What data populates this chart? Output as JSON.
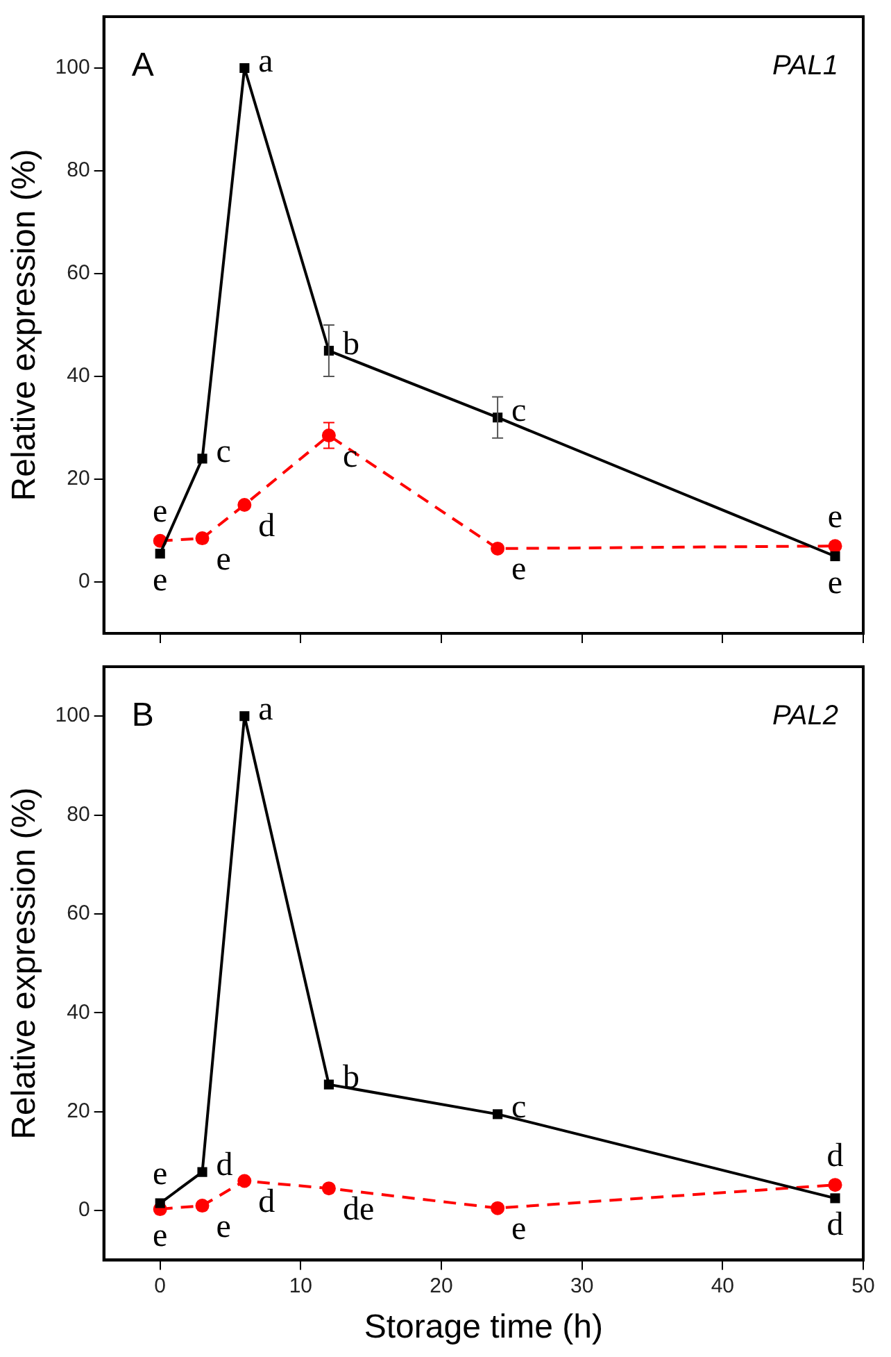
{
  "chart_data": [
    {
      "type": "line",
      "title": "A",
      "ylabel": "Relative expression (%)",
      "x": [
        0,
        3,
        6,
        12,
        24,
        48
      ],
      "xlim": [
        -4,
        50
      ],
      "xticks": [
        0,
        10,
        20,
        30,
        40,
        50
      ],
      "ylim": [
        -10,
        110
      ],
      "yticks": [
        0,
        20,
        40,
        60,
        80,
        100
      ],
      "tick_labels": "y",
      "grid": false,
      "series": [
        {
          "color": "#000000",
          "marker": "square",
          "line_style": "solid",
          "values": [
            5.5,
            24,
            100,
            45,
            32,
            5
          ],
          "errors": [
            null,
            null,
            null,
            5,
            4,
            null
          ]
        },
        {
          "color": "#ff0000",
          "marker": "circle",
          "line_style": "dashed",
          "values": [
            8,
            8.5,
            15,
            28.5,
            6.5,
            7
          ],
          "errors": [
            null,
            null,
            null,
            2.5,
            null,
            null
          ]
        }
      ],
      "annotations": [
        "PAL1",
        {
          "text": "e",
          "x": 0,
          "y": 8
        },
        {
          "text": "e",
          "x": 0,
          "y": 5.5
        },
        {
          "text": "c",
          "x": 3,
          "y": 24
        },
        {
          "text": "e",
          "x": 3,
          "y": 8.5
        },
        {
          "text": "a",
          "x": 6,
          "y": 100
        },
        {
          "text": "d",
          "x": 6,
          "y": 15
        },
        {
          "text": "b",
          "x": 12,
          "y": 45
        },
        {
          "text": "c",
          "x": 12,
          "y": 28.5
        },
        {
          "text": "c",
          "x": 24,
          "y": 32
        },
        {
          "text": "e",
          "x": 24,
          "y": 6.5
        },
        {
          "text": "e",
          "x": 48,
          "y": 7
        },
        {
          "text": "e",
          "x": 48,
          "y": 5
        }
      ]
    },
    {
      "type": "line",
      "title": "B",
      "xlabel": "Storage time (h)",
      "ylabel": "Relative expression (%)",
      "x": [
        0,
        3,
        6,
        12,
        24,
        48
      ],
      "xlim": [
        -4,
        50
      ],
      "xticks": [
        0,
        10,
        20,
        30,
        40,
        50
      ],
      "ylim": [
        -10,
        110
      ],
      "yticks": [
        0,
        20,
        40,
        60,
        80,
        100
      ],
      "grid": false,
      "series": [
        {
          "color": "#000000",
          "marker": "square",
          "line_style": "solid",
          "values": [
            1.5,
            7.8,
            100,
            25.5,
            19.5,
            2.5
          ]
        },
        {
          "color": "#ff0000",
          "marker": "circle",
          "line_style": "dashed",
          "values": [
            0.3,
            1,
            6,
            4.5,
            0.5,
            5.2
          ]
        }
      ],
      "annotations": [
        "PAL2",
        {
          "text": "e",
          "x": 0,
          "y": 1.5
        },
        {
          "text": "e",
          "x": 0,
          "y": 0.3
        },
        {
          "text": "d",
          "x": 3,
          "y": 7.8
        },
        {
          "text": "e",
          "x": 3,
          "y": 1
        },
        {
          "text": "a",
          "x": 6,
          "y": 100
        },
        {
          "text": "d",
          "x": 6,
          "y": 6
        },
        {
          "text": "b",
          "x": 12,
          "y": 25.5
        },
        {
          "text": "de",
          "x": 12,
          "y": 4.5
        },
        {
          "text": "c",
          "x": 24,
          "y": 19.5
        },
        {
          "text": "e",
          "x": 24,
          "y": 0.5
        },
        {
          "text": "d",
          "x": 48,
          "y": 5.2
        },
        {
          "text": "d",
          "x": 48,
          "y": 2.5
        }
      ]
    }
  ]
}
